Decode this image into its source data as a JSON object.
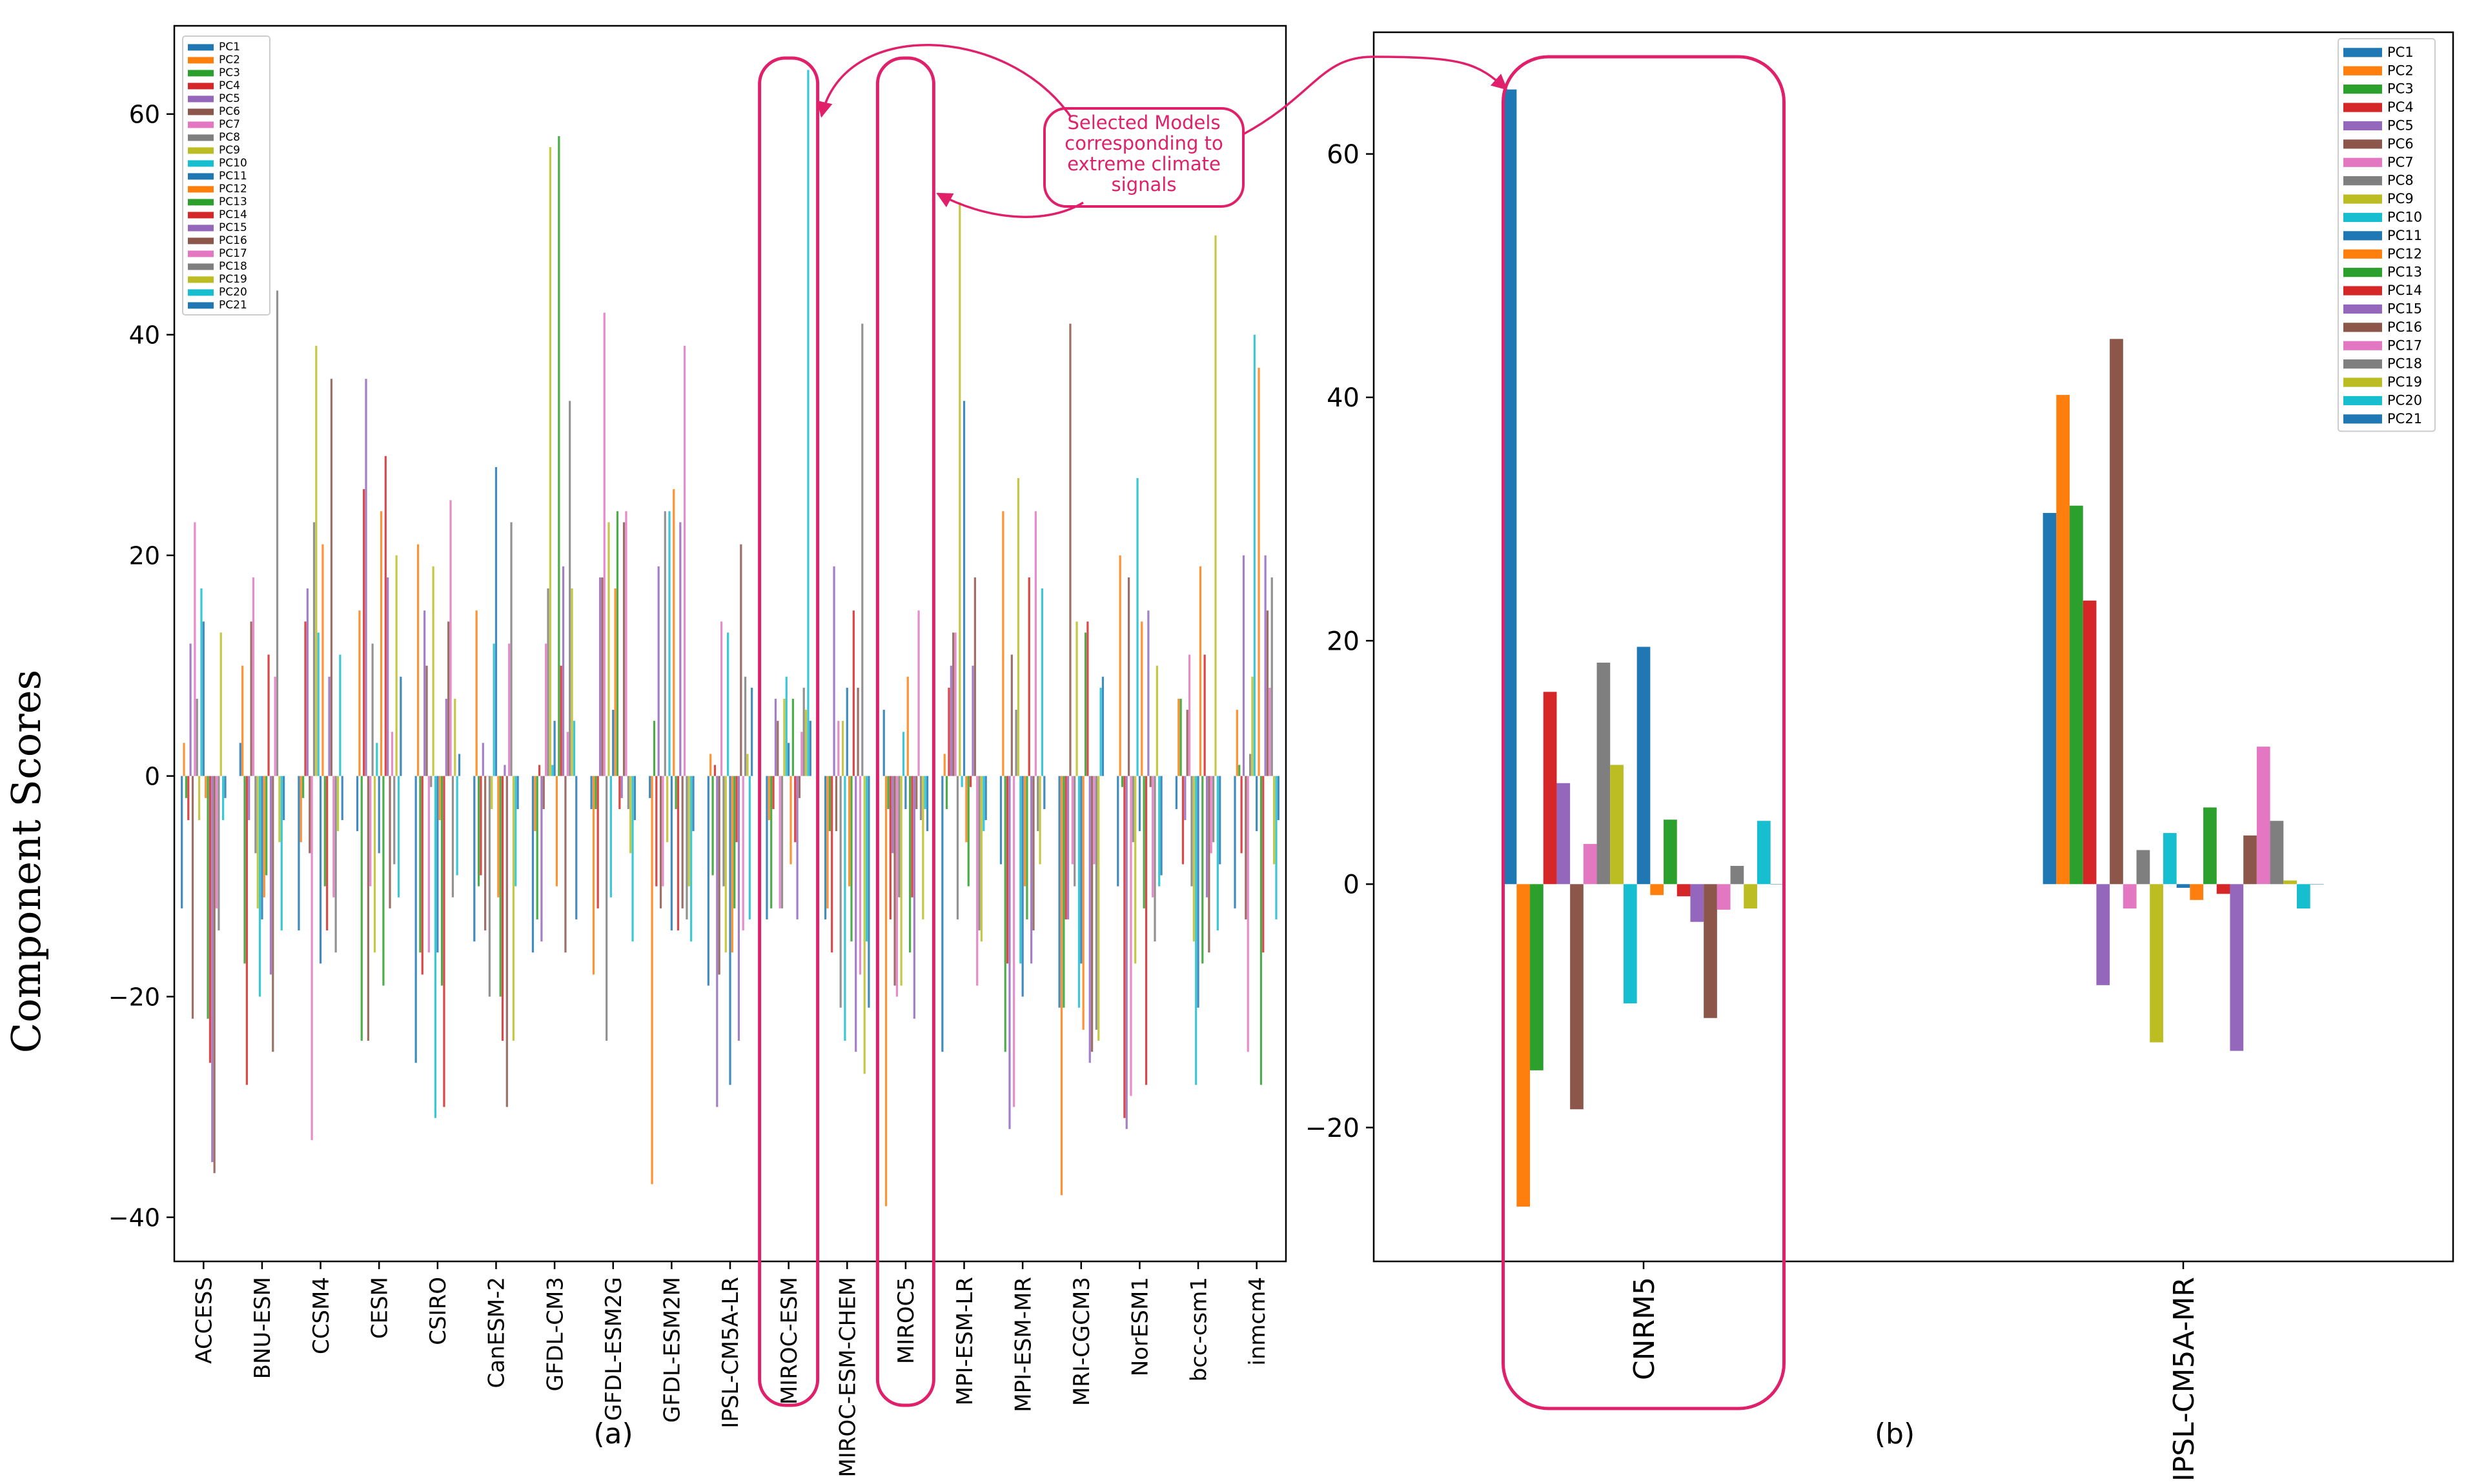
{
  "figure": {
    "ylabel": "Component Scores",
    "annotation": [
      "Selected Models",
      "corresponding to",
      "extreme climate",
      "signals"
    ],
    "highlight_color": "#e0206a"
  },
  "palette": [
    "#1f77b4",
    "#ff7f0e",
    "#2ca02c",
    "#d62728",
    "#9467bd",
    "#8c564b",
    "#e377c2",
    "#7f7f7f",
    "#bcbd22",
    "#17becf"
  ],
  "chart_data": [
    {
      "type": "bar",
      "panel_label": "(a)",
      "ylim": [
        -44,
        68
      ],
      "yticks": [
        -40,
        -20,
        0,
        20,
        40,
        60
      ],
      "legend": "top-left",
      "highlighted": [
        "MIROC-ESM",
        "MIROC5"
      ],
      "categories": [
        "ACCESS",
        "BNU-ESM",
        "CCSM4",
        "CESM",
        "CSIRO",
        "CanESM-2",
        "GFDL-CM3",
        "GFDL-ESM2G",
        "GFDL-ESM2M",
        "IPSL-CM5A-LR",
        "MIROC-ESM",
        "MIROC-ESM-CHEM",
        "MIROC5",
        "MPI-ESM-LR",
        "MPI-ESM-MR",
        "MRI-CGCM3",
        "NorESM1",
        "bcc-csm1",
        "inmcm4"
      ],
      "series": [
        {
          "name": "PC1",
          "values": [
            -12,
            3,
            -14,
            -5,
            -26,
            -15,
            -16,
            -3,
            -2,
            -19,
            -13,
            -13,
            6,
            -25,
            -8,
            -21,
            -10,
            -3,
            -12
          ]
        },
        {
          "name": "PC2",
          "values": [
            3,
            10,
            -6,
            15,
            21,
            15,
            -5,
            -18,
            -37,
            2,
            -4,
            -12,
            -39,
            2,
            24,
            -38,
            20,
            7,
            6
          ]
        },
        {
          "name": "PC3",
          "values": [
            -2,
            -17,
            -2,
            -24,
            -16,
            -10,
            -13,
            -3,
            5,
            -9,
            -12,
            -5,
            -3,
            -3,
            -25,
            -21,
            -1,
            7,
            1
          ]
        },
        {
          "name": "PC4",
          "values": [
            -4,
            -28,
            14,
            26,
            -18,
            -9,
            1,
            -12,
            -10,
            1,
            -3,
            -16,
            -13,
            8,
            -17,
            -13,
            -31,
            -8,
            -7
          ]
        },
        {
          "name": "PC5",
          "values": [
            12,
            -4,
            17,
            36,
            15,
            3,
            -15,
            18,
            19,
            -30,
            7,
            19,
            -7,
            10,
            -32,
            -13,
            -32,
            -4,
            20
          ]
        },
        {
          "name": "PC6",
          "values": [
            -22,
            14,
            -7,
            -24,
            10,
            -14,
            -3,
            18,
            -12,
            -18,
            5,
            -5,
            -19,
            13,
            11,
            41,
            18,
            6,
            -13
          ]
        },
        {
          "name": "PC7",
          "values": [
            23,
            18,
            -33,
            -10,
            -16,
            0,
            12,
            42,
            -10,
            14,
            -12,
            5,
            -20,
            13,
            -30,
            -8,
            -29,
            11,
            -25
          ]
        },
        {
          "name": "PC8",
          "values": [
            7,
            -7,
            23,
            12,
            -1,
            -20,
            17,
            -24,
            24,
            -10,
            -12,
            -21,
            -11,
            -13,
            6,
            -10,
            -6,
            -10,
            2
          ]
        },
        {
          "name": "PC9",
          "values": [
            -4,
            -12,
            39,
            -16,
            19,
            -3,
            57,
            23,
            -6,
            -16,
            7,
            5,
            -19,
            52,
            27,
            14,
            -17,
            -15,
            9
          ]
        },
        {
          "name": "PC10",
          "values": [
            17,
            -20,
            13,
            3,
            -31,
            12,
            1,
            -11,
            24,
            13,
            9,
            -24,
            4,
            -1,
            -17,
            -21,
            27,
            -28,
            40
          ]
        },
        {
          "name": "PC11",
          "values": [
            14,
            -13,
            -17,
            -7,
            -16,
            28,
            5,
            6,
            -14,
            -28,
            3,
            8,
            -3,
            34,
            -20,
            -17,
            -5,
            -21,
            -5
          ]
        },
        {
          "name": "PC12",
          "values": [
            -2,
            -11,
            21,
            24,
            -4,
            -11,
            -10,
            17,
            26,
            -16,
            -8,
            -10,
            9,
            -6,
            -10,
            -23,
            14,
            19,
            37
          ]
        },
        {
          "name": "PC13",
          "values": [
            -22,
            -9,
            -10,
            -19,
            -19,
            -20,
            58,
            24,
            -3,
            -12,
            7,
            -15,
            -16,
            -10,
            -13,
            13,
            -12,
            -17,
            -28
          ]
        },
        {
          "name": "PC14",
          "values": [
            -26,
            11,
            -14,
            29,
            -30,
            -24,
            10,
            -3,
            -14,
            -6,
            -6,
            15,
            -11,
            -1,
            18,
            14,
            -28,
            11,
            -16
          ]
        },
        {
          "name": "PC15",
          "values": [
            -35,
            -18,
            9,
            18,
            7,
            1,
            19,
            -2,
            23,
            -24,
            -13,
            -25,
            -22,
            10,
            -17,
            -26,
            15,
            -11,
            20
          ]
        },
        {
          "name": "PC16",
          "values": [
            -36,
            -25,
            36,
            -12,
            14,
            -30,
            -16,
            23,
            -12,
            21,
            -2,
            8,
            -3,
            18,
            -14,
            -25,
            -1,
            -16,
            15
          ]
        },
        {
          "name": "PC17",
          "values": [
            -12,
            9,
            -11,
            4,
            25,
            12,
            4,
            24,
            39,
            -14,
            4,
            -18,
            15,
            -19,
            24,
            -8,
            -11,
            -7,
            8
          ]
        },
        {
          "name": "PC18",
          "values": [
            -14,
            44,
            -16,
            -8,
            -11,
            23,
            34,
            -3,
            -13,
            9,
            8,
            41,
            -4,
            -14,
            -5,
            -23,
            -15,
            -6,
            18
          ]
        },
        {
          "name": "PC19",
          "values": [
            13,
            -6,
            -5,
            20,
            7,
            -24,
            17,
            -7,
            -10,
            2,
            6,
            -27,
            -13,
            -15,
            -8,
            -24,
            10,
            49,
            -8
          ]
        },
        {
          "name": "PC20",
          "values": [
            -4,
            -14,
            11,
            -11,
            -9,
            -10,
            5,
            -15,
            -15,
            -13,
            64,
            -15,
            -3,
            -5,
            17,
            8,
            -10,
            -14,
            -13
          ]
        },
        {
          "name": "PC21",
          "values": [
            -2,
            -4,
            -4,
            9,
            2,
            -3,
            -13,
            -4,
            -5,
            8,
            5,
            -21,
            -5,
            -4,
            -3,
            9,
            -9,
            -8,
            -4
          ]
        }
      ]
    },
    {
      "type": "bar",
      "panel_label": "(b)",
      "ylim": [
        -31,
        70
      ],
      "yticks": [
        -20,
        0,
        20,
        40,
        60
      ],
      "legend": "top-right",
      "highlighted": [
        "CNRM5"
      ],
      "categories": [
        "CNRM5",
        "IPSL-CM5A-MR"
      ],
      "series": [
        {
          "name": "PC1",
          "values": [
            65.3,
            30.5
          ]
        },
        {
          "name": "PC2",
          "values": [
            -26.5,
            40.2
          ]
        },
        {
          "name": "PC3",
          "values": [
            -15.3,
            31.1
          ]
        },
        {
          "name": "PC4",
          "values": [
            15.8,
            23.3
          ]
        },
        {
          "name": "PC5",
          "values": [
            8.3,
            -8.3
          ]
        },
        {
          "name": "PC6",
          "values": [
            -18.5,
            44.8
          ]
        },
        {
          "name": "PC7",
          "values": [
            3.3,
            -2.0
          ]
        },
        {
          "name": "PC8",
          "values": [
            18.2,
            2.8
          ]
        },
        {
          "name": "PC9",
          "values": [
            9.8,
            -13.0
          ]
        },
        {
          "name": "PC10",
          "values": [
            -9.8,
            4.2
          ]
        },
        {
          "name": "PC11",
          "values": [
            19.5,
            -0.3
          ]
        },
        {
          "name": "PC12",
          "values": [
            -0.9,
            -1.3
          ]
        },
        {
          "name": "PC13",
          "values": [
            5.3,
            6.3
          ]
        },
        {
          "name": "PC14",
          "values": [
            -1.0,
            -0.8
          ]
        },
        {
          "name": "PC15",
          "values": [
            -3.1,
            -13.7
          ]
        },
        {
          "name": "PC16",
          "values": [
            -11.0,
            4.0
          ]
        },
        {
          "name": "PC17",
          "values": [
            -2.1,
            11.3
          ]
        },
        {
          "name": "PC18",
          "values": [
            1.5,
            5.2
          ]
        },
        {
          "name": "PC19",
          "values": [
            -2.0,
            0.3
          ]
        },
        {
          "name": "PC20",
          "values": [
            5.2,
            -2.0
          ]
        },
        {
          "name": "PC21",
          "values": [
            0,
            0
          ]
        }
      ]
    }
  ]
}
